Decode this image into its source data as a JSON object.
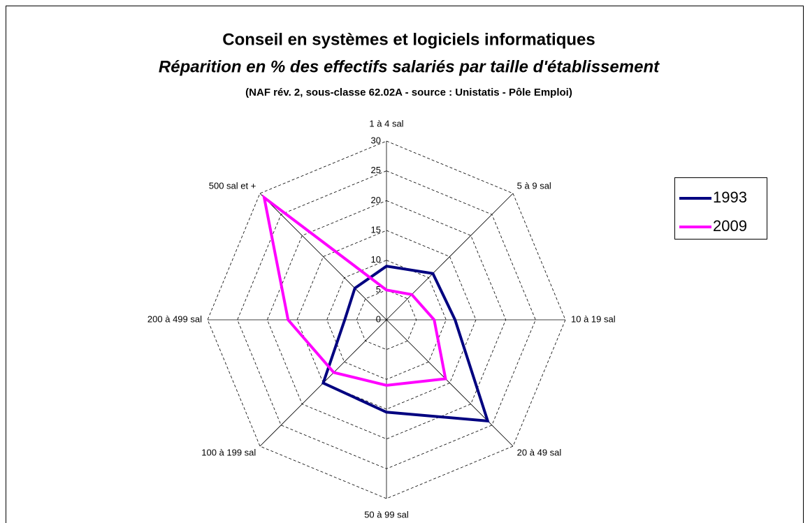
{
  "chart_data": {
    "type": "radar",
    "title": "Conseil en systèmes et logiciels informatiques",
    "subtitle": "Réparition en % des effectifs salariés par taille d'établissement",
    "note": "(NAF rév. 2, sous-classe 62.02A - source : Unistatis - Pôle Emploi)",
    "categories": [
      "1 à 4 sal",
      "5 à 9 sal",
      "10 à 19 sal",
      "20 à 49 sal",
      "50 à 99 sal",
      "100 à 199 sal",
      "200 à 499 sal",
      "500 sal et +"
    ],
    "series": [
      {
        "name": "1993",
        "color": "#000080",
        "values": [
          9,
          11,
          11.5,
          24,
          15.5,
          15,
          7,
          7.5
        ]
      },
      {
        "name": "2009",
        "color": "#ff00ff",
        "values": [
          5,
          6,
          8,
          14,
          11,
          12.5,
          16.5,
          29
        ]
      }
    ],
    "ylim": [
      0,
      30
    ],
    "yticks": [
      0,
      5,
      10,
      15,
      20,
      25,
      30
    ],
    "grid": true,
    "legend": "right"
  }
}
